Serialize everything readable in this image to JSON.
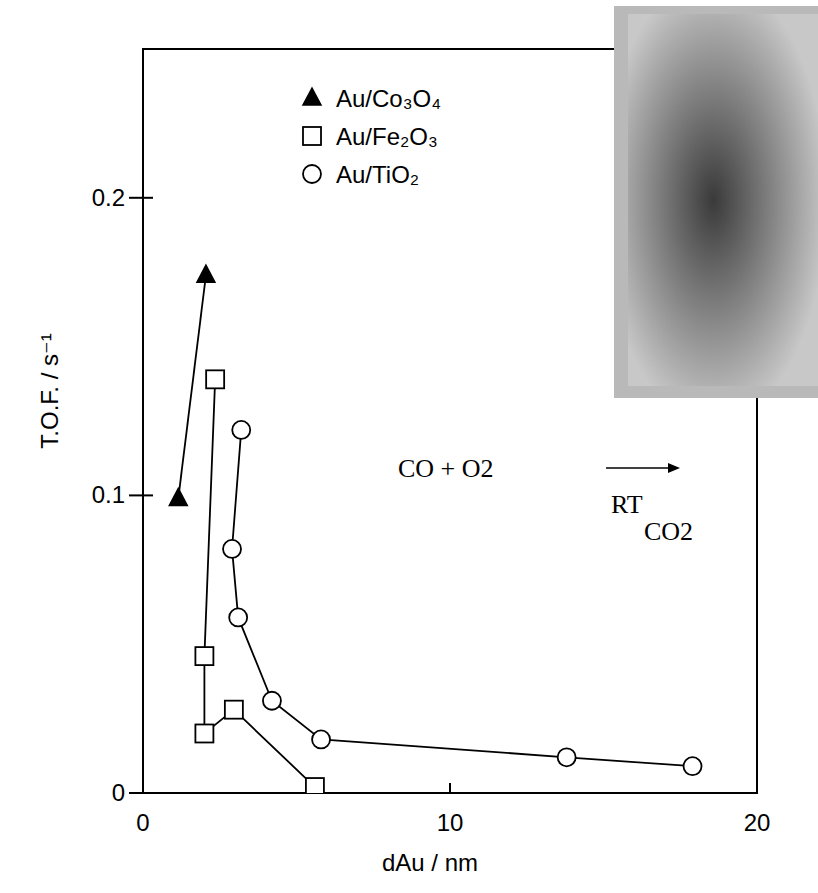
{
  "chart_data": {
    "type": "scatter",
    "x_label": "dAu / nm",
    "y_label": "T.O.F. / s⁻¹",
    "xlim": [
      0,
      20
    ],
    "xticks": [
      0,
      10,
      20
    ],
    "ylim": [
      0,
      0.25
    ],
    "yticks": [
      0,
      0.1,
      0.2
    ],
    "legend": "top",
    "line_style": "solid",
    "series": [
      {
        "name": "Au/Co₃O₄",
        "color": "#000000",
        "marker": "filled-triangle",
        "x": [
          1.15,
          2.05
        ],
        "values": [
          0.099,
          0.174
        ]
      },
      {
        "name": "Au/Fe₂O₃",
        "color": "#000000",
        "marker": "open-square",
        "x": [
          2.35,
          2.0,
          2.0,
          2.96,
          5.6
        ],
        "values": [
          0.139,
          0.046,
          0.02,
          0.028,
          0.002
        ]
      },
      {
        "name": "Au/TiO₂",
        "color": "#000000",
        "marker": "open-circle",
        "x": [
          3.2,
          2.9,
          3.1,
          4.2,
          5.8,
          13.8,
          17.9
        ],
        "values": [
          0.122,
          0.082,
          0.059,
          0.031,
          0.018,
          0.012,
          0.009
        ]
      }
    ],
    "annotations": [
      {
        "text": "CO + O2"
      },
      {
        "text": "RT"
      },
      {
        "text": "CO2"
      }
    ]
  }
}
